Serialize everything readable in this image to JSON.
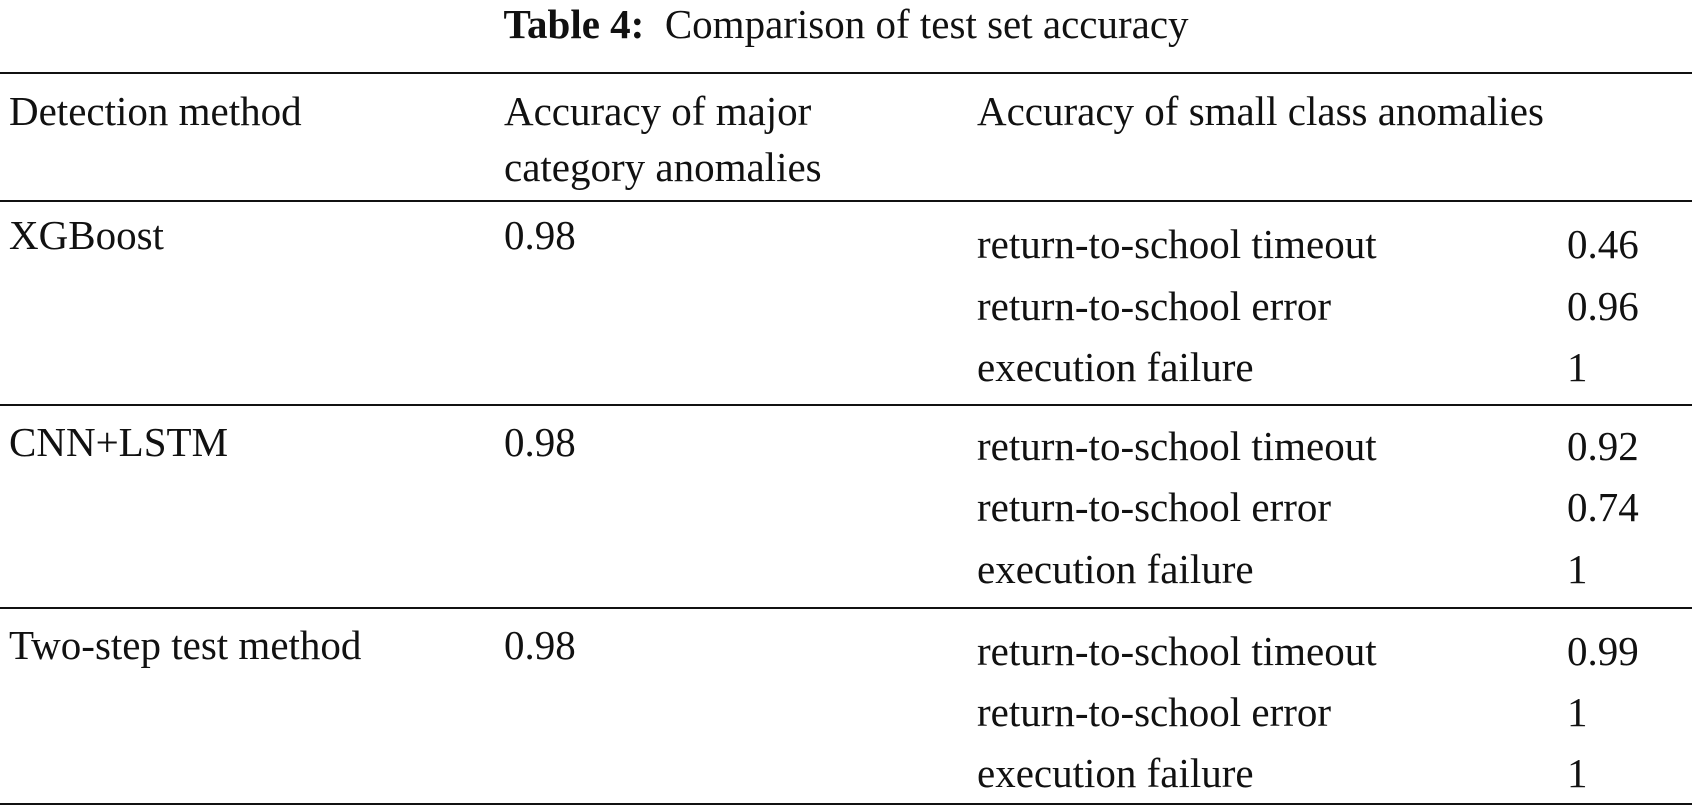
{
  "caption": {
    "label": "Table 4:",
    "text": "Comparison of test set accuracy"
  },
  "headers": {
    "method": "Detection method",
    "major_line1": "Accuracy of major",
    "major_line2": "category anomalies",
    "small": "Accuracy of small class anomalies"
  },
  "rows": [
    {
      "method": "XGBoost",
      "major": "0.98",
      "small": [
        {
          "name": "return-to-school timeout",
          "value": "0.46"
        },
        {
          "name": "return-to-school error",
          "value": "0.96"
        },
        {
          "name": "execution failure",
          "value": "1"
        }
      ]
    },
    {
      "method": "CNN+LSTM",
      "major": "0.98",
      "small": [
        {
          "name": "return-to-school timeout",
          "value": "0.92"
        },
        {
          "name": "return-to-school error",
          "value": "0.74"
        },
        {
          "name": "execution failure",
          "value": "1"
        }
      ]
    },
    {
      "method": "Two-step test method",
      "major": "0.98",
      "small": [
        {
          "name": "return-to-school timeout",
          "value": "0.99"
        },
        {
          "name": "return-to-school error",
          "value": "1"
        },
        {
          "name": "execution failure",
          "value": "1"
        }
      ]
    }
  ]
}
